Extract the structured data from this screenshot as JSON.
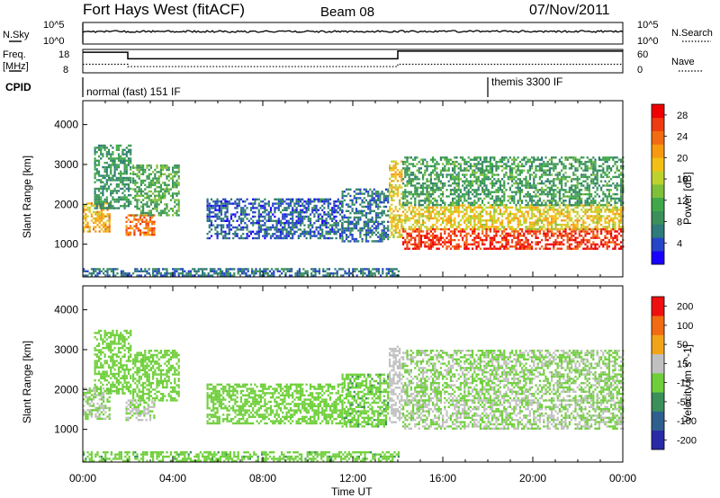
{
  "header": {
    "radar": "Fort Hays West (fitACF)",
    "beam": "Beam 08",
    "date": "07/Nov/2011"
  },
  "noise_panel": {
    "left_label": "N.Sky",
    "right_label": "N.Search",
    "left_ticks": [
      "10^5",
      "10^0"
    ],
    "right_ticks": [
      "10^5",
      "10^0"
    ]
  },
  "freq_panel": {
    "left_label_line1": "Freq.",
    "left_label_line2": "[MHz]",
    "right_label": "Nave",
    "left_ticks": [
      "18",
      "8"
    ],
    "right_ticks": [
      "60",
      "0"
    ],
    "freq_mhz_segments": [
      {
        "start_h": 0.0,
        "end_h": 2.0,
        "value": 16.8
      },
      {
        "start_h": 2.0,
        "end_h": 14.0,
        "value": 14.0
      },
      {
        "start_h": 14.0,
        "end_h": 24.0,
        "value": 17.3
      }
    ],
    "nave_segments": [
      {
        "start_h": 0.0,
        "end_h": 2.0,
        "value": 22
      },
      {
        "start_h": 2.0,
        "end_h": 14.0,
        "value": 16
      },
      {
        "start_h": 14.0,
        "end_h": 24.0,
        "value": 22
      }
    ]
  },
  "cpid": {
    "label": "CPID",
    "modes": [
      {
        "start_h": 0.0,
        "text": "normal (fast) 151 IF"
      },
      {
        "start_h": 18.0,
        "text": "themis 3300 IF"
      }
    ]
  },
  "chart_data": [
    {
      "type": "heatmap",
      "panel": "power",
      "ylabel": "Slant Range [km]",
      "ylim": [
        180,
        4600
      ],
      "y_ticks": [
        "1000",
        "2000",
        "3000",
        "4000"
      ],
      "xlim": [
        0,
        24
      ],
      "colorbar": {
        "label": "Power [dB]",
        "ticks": [
          "4",
          "8",
          "12",
          "16",
          "20",
          "24",
          "28"
        ],
        "tick_values": [
          4,
          8,
          12,
          16,
          20,
          24,
          28
        ],
        "range": [
          0,
          30
        ],
        "colors": [
          "#1a00ff",
          "#2645c8",
          "#2f7a7a",
          "#3a8f5a",
          "#3fa84a",
          "#7fc03a",
          "#bed22e",
          "#f2c014",
          "#f79a10",
          "#f26b12",
          "#f03a10",
          "#ee0000"
        ]
      },
      "regions": [
        {
          "t": [
            0.0,
            1.2
          ],
          "r": [
            1300,
            2050
          ],
          "level": 20
        },
        {
          "t": [
            0.5,
            2.1
          ],
          "r": [
            1900,
            3500
          ],
          "level": 9
        },
        {
          "t": [
            1.9,
            3.2
          ],
          "r": [
            1250,
            1750
          ],
          "level": 24
        },
        {
          "t": [
            2.2,
            4.3
          ],
          "r": [
            1750,
            3000
          ],
          "level": 11
        },
        {
          "t": [
            5.5,
            11.5
          ],
          "r": [
            1150,
            2150
          ],
          "level": 5
        },
        {
          "t": [
            11.5,
            13.6
          ],
          "r": [
            1100,
            2400
          ],
          "level": 6
        },
        {
          "t": [
            13.6,
            14.2
          ],
          "r": [
            1200,
            3100
          ],
          "level": 18
        },
        {
          "t": [
            14.2,
            24.0
          ],
          "r": [
            900,
            1400
          ],
          "level": 27
        },
        {
          "t": [
            14.2,
            24.0
          ],
          "r": [
            1400,
            2000
          ],
          "level": 18
        },
        {
          "t": [
            14.2,
            24.0
          ],
          "r": [
            2000,
            3200
          ],
          "level": 10
        },
        {
          "t": [
            0.0,
            14.0
          ],
          "r": [
            200,
            400
          ],
          "level": 6
        }
      ]
    },
    {
      "type": "heatmap",
      "panel": "velocity",
      "ylabel": "Slant Range [km]",
      "ylim": [
        180,
        4600
      ],
      "y_ticks": [
        "1000",
        "2000",
        "3000",
        "4000"
      ],
      "xlim": [
        0,
        24
      ],
      "x_ticks": [
        "00:00",
        "04:00",
        "08:00",
        "12:00",
        "16:00",
        "20:00",
        "00:00"
      ],
      "xlabel": "Time UT",
      "colorbar": {
        "label": "Velocity [m s^-1]",
        "ticks": [
          "200",
          "100",
          "50",
          "15",
          "-15",
          "-50",
          "-100",
          "-200"
        ],
        "tick_values": [
          200,
          100,
          50,
          15,
          -15,
          -50,
          -100,
          -200
        ],
        "range": [
          -250,
          250
        ],
        "colors": [
          "#2a2aa8",
          "#2f5f8f",
          "#3a8f5a",
          "#6fcf3a",
          "#c0c0c0",
          "#f2a418",
          "#f26b12",
          "#ee1010"
        ]
      },
      "regions": [
        {
          "t": [
            0.0,
            1.2
          ],
          "r": [
            1250,
            2050
          ],
          "level": 0
        },
        {
          "t": [
            0.5,
            2.1
          ],
          "r": [
            1900,
            3500
          ],
          "level": -20
        },
        {
          "t": [
            1.9,
            3.2
          ],
          "r": [
            1250,
            1750
          ],
          "level": 0
        },
        {
          "t": [
            2.2,
            4.3
          ],
          "r": [
            1750,
            3000
          ],
          "level": -25
        },
        {
          "t": [
            5.5,
            11.5
          ],
          "r": [
            1150,
            2150
          ],
          "level": -40
        },
        {
          "t": [
            11.5,
            13.6
          ],
          "r": [
            1100,
            2400
          ],
          "level": -45
        },
        {
          "t": [
            13.6,
            14.2
          ],
          "r": [
            1200,
            3100
          ],
          "level": 30
        },
        {
          "t": [
            14.2,
            24.0
          ],
          "r": [
            1000,
            1750
          ],
          "level": 0
        },
        {
          "t": [
            14.2,
            24.0
          ],
          "r": [
            1750,
            3000
          ],
          "level": -5
        },
        {
          "t": [
            0.0,
            14.0
          ],
          "r": [
            200,
            450
          ],
          "level": -45
        }
      ]
    }
  ]
}
